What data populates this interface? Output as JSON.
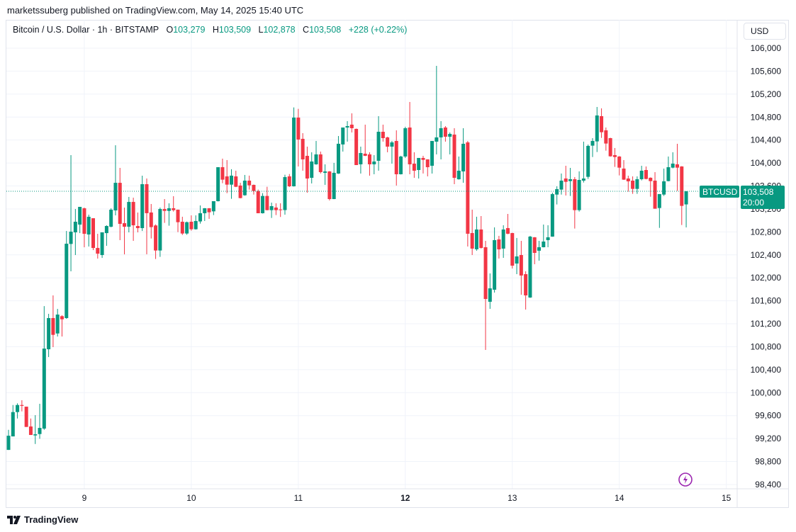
{
  "publish_line": "marketssuberg published on TradingView.com, May 14, 2025 15:40 UTC",
  "legend": {
    "symbol": "Bitcoin / U.S. Dollar · 1h · BITSTAMP",
    "o_label": "O",
    "o": "103,279",
    "h_label": "H",
    "h": "103,509",
    "l_label": "L",
    "l": "102,878",
    "c_label": "C",
    "c": "103,508",
    "change": "+228 (+0.22%)"
  },
  "currency_button": "USD",
  "last_price": {
    "symbol": "BTCUSD",
    "price": "103,508",
    "countdown": "20:00",
    "value": 103508
  },
  "footer_logo": "TradingView",
  "colors": {
    "up": "#089981",
    "down": "#F23645",
    "grid": "#f0f3fa",
    "accent": "#9c27b0"
  },
  "chart_data": {
    "type": "candlestick",
    "title": "Bitcoin / U.S. Dollar · 1h · BITSTAMP",
    "interval": "1h",
    "first_candle": "May 8 07:00",
    "ylim": [
      98400,
      106000
    ],
    "y_ticks": [
      106000,
      105600,
      105200,
      104800,
      104400,
      104000,
      103600,
      103200,
      102800,
      102400,
      102000,
      101600,
      101200,
      100800,
      100400,
      100000,
      99600,
      99200,
      98800,
      98400
    ],
    "y_tick_labels": [
      "106,000",
      "105,600",
      "105,200",
      "104,800",
      "104,400",
      "104,000",
      "103,600",
      "103,200",
      "102,800",
      "102,400",
      "102,000",
      "101,600",
      "101,200",
      "100,800",
      "100,400",
      "100,000",
      "99,600",
      "99,200",
      "98,800",
      "98,400"
    ],
    "x_ticks": [
      {
        "label": "9",
        "index": 17,
        "bold": false
      },
      {
        "label": "10",
        "index": 41,
        "bold": false
      },
      {
        "label": "11",
        "index": 65,
        "bold": false
      },
      {
        "label": "12",
        "index": 89,
        "bold": true
      },
      {
        "label": "13",
        "index": 113,
        "bold": false
      },
      {
        "label": "14",
        "index": 137,
        "bold": false
      },
      {
        "label": "15",
        "index": 161,
        "bold": false
      }
    ],
    "ohlc": [
      [
        99003,
        99353,
        99003,
        99250
      ],
      [
        99238,
        99785,
        99238,
        99662
      ],
      [
        99662,
        99814,
        99550,
        99785
      ],
      [
        99785,
        99868,
        99674,
        99770
      ],
      [
        99756,
        99756,
        99403,
        99403
      ],
      [
        99411,
        99550,
        99263,
        99263
      ],
      [
        99255,
        99608,
        99106,
        99275
      ],
      [
        99279,
        99806,
        99197,
        99386
      ],
      [
        99374,
        101508,
        99353,
        100768
      ],
      [
        100756,
        101373,
        100620,
        101299
      ],
      [
        101299,
        101694,
        100793,
        101007
      ],
      [
        101031,
        101459,
        100978,
        101360
      ],
      [
        101332,
        101348,
        100978,
        101278
      ],
      [
        101299,
        102816,
        101286,
        102594
      ],
      [
        102590,
        104137,
        102113,
        102804
      ],
      [
        102792,
        103199,
        102397,
        102977
      ],
      [
        102927,
        103236,
        102779,
        103236
      ],
      [
        103211,
        103223,
        102532,
        102767
      ],
      [
        102755,
        103100,
        102545,
        103063
      ],
      [
        103038,
        103038,
        102483,
        102520
      ],
      [
        102520,
        102767,
        102335,
        102421
      ],
      [
        102397,
        102792,
        102347,
        102792
      ],
      [
        102779,
        102915,
        102557,
        102903
      ],
      [
        102890,
        103211,
        102880,
        103187
      ],
      [
        103174,
        104309,
        103088,
        103655
      ],
      [
        103655,
        103915,
        102656,
        102940
      ],
      [
        102952,
        103223,
        102409,
        102890
      ],
      [
        102890,
        103409,
        102792,
        103322
      ],
      [
        103322,
        103396,
        102644,
        102915
      ],
      [
        102903,
        103137,
        102792,
        102866
      ],
      [
        102866,
        103779,
        102816,
        103631
      ],
      [
        103631,
        103730,
        102410,
        103126
      ],
      [
        103138,
        103286,
        102685,
        102883
      ],
      [
        102912,
        102930,
        102328,
        102476
      ],
      [
        102476,
        103224,
        102365,
        103199
      ],
      [
        103199,
        103372,
        102957,
        103166
      ],
      [
        103166,
        103298,
        102908,
        103212
      ],
      [
        103212,
        103422,
        103154,
        103179
      ],
      [
        103187,
        103190,
        102796,
        102969
      ],
      [
        102977,
        103064,
        102747,
        102772
      ],
      [
        102772,
        102980,
        102750,
        102969
      ],
      [
        102977,
        103088,
        102821,
        102846
      ],
      [
        102846,
        103088,
        102840,
        102990
      ],
      [
        102982,
        103261,
        102944,
        103125
      ],
      [
        103125,
        103215,
        102990,
        103212
      ],
      [
        103212,
        103215,
        103027,
        103142
      ],
      [
        103158,
        103335,
        103093,
        103335
      ],
      [
        103335,
        103927,
        103330,
        103927
      ],
      [
        103927,
        104076,
        103648,
        103710
      ],
      [
        103767,
        104051,
        103475,
        103623
      ],
      [
        103623,
        103891,
        103376,
        103780
      ],
      [
        103767,
        103866,
        103580,
        103586
      ],
      [
        103607,
        103656,
        103385,
        103389
      ],
      [
        103438,
        103792,
        103430,
        103693
      ],
      [
        103693,
        103780,
        103537,
        103611
      ],
      [
        103619,
        103625,
        103450,
        103512
      ],
      [
        103512,
        103537,
        103125,
        103125
      ],
      [
        103125,
        103475,
        103120,
        103426
      ],
      [
        103426,
        103586,
        103175,
        103179
      ],
      [
        103179,
        103310,
        103043,
        103249
      ],
      [
        103224,
        103298,
        103093,
        103179
      ],
      [
        103191,
        103298,
        103060,
        103183
      ],
      [
        103180,
        103796,
        103100,
        103755
      ],
      [
        103767,
        103808,
        103582,
        103594
      ],
      [
        103594,
        104968,
        103590,
        104791
      ],
      [
        104791,
        104943,
        103940,
        104409
      ],
      [
        104421,
        104520,
        103866,
        104063
      ],
      [
        104125,
        104285,
        103483,
        103730
      ],
      [
        103742,
        104187,
        103644,
        104026
      ],
      [
        103977,
        104384,
        103970,
        104150
      ],
      [
        104150,
        104199,
        103817,
        103841
      ],
      [
        103829,
        103977,
        103619,
        103853
      ],
      [
        103853,
        103860,
        103348,
        103372
      ],
      [
        103372,
        104002,
        103370,
        103829
      ],
      [
        103816,
        104470,
        103810,
        104335
      ],
      [
        104323,
        104618,
        104199,
        104618
      ],
      [
        104618,
        104729,
        104372,
        104643
      ],
      [
        104668,
        104865,
        104532,
        104606
      ],
      [
        104594,
        104600,
        103964,
        103964
      ],
      [
        103977,
        104285,
        103816,
        104174
      ],
      [
        104162,
        104668,
        104120,
        104125
      ],
      [
        104150,
        104187,
        103779,
        103977
      ],
      [
        103977,
        104137,
        103804,
        104026
      ],
      [
        104038,
        104816,
        103866,
        104544
      ],
      [
        104544,
        104668,
        104372,
        104433
      ],
      [
        104446,
        104458,
        104187,
        104285
      ],
      [
        104285,
        104384,
        103989,
        104359
      ],
      [
        104384,
        104569,
        103607,
        103804
      ],
      [
        103804,
        104125,
        103800,
        104113
      ],
      [
        104113,
        104631,
        104088,
        104606
      ],
      [
        104618,
        105063,
        103804,
        103977
      ],
      [
        103989,
        104187,
        103742,
        103866
      ],
      [
        103878,
        104088,
        103730,
        104088
      ],
      [
        104088,
        104125,
        103817,
        104055
      ],
      [
        104063,
        104065,
        103767,
        103927
      ],
      [
        103952,
        104384,
        103816,
        104384
      ],
      [
        104372,
        105692,
        104150,
        104446
      ],
      [
        104446,
        104729,
        104063,
        104606
      ],
      [
        104618,
        104643,
        104372,
        104458
      ],
      [
        104458,
        104532,
        104150,
        104507
      ],
      [
        104495,
        104606,
        103631,
        103742
      ],
      [
        103717,
        104113,
        103710,
        103866
      ],
      [
        103853,
        104606,
        103656,
        104335
      ],
      [
        104359,
        104384,
        102546,
        102768
      ],
      [
        102780,
        103187,
        102397,
        102509
      ],
      [
        102497,
        103064,
        102472,
        102842
      ],
      [
        102842,
        103076,
        102510,
        102521
      ],
      [
        102533,
        102644,
        100744,
        101632
      ],
      [
        101583,
        102077,
        101460,
        101817
      ],
      [
        101793,
        102879,
        101743,
        102657
      ],
      [
        102669,
        102731,
        102336,
        102496
      ],
      [
        102509,
        102916,
        102348,
        102842
      ],
      [
        102866,
        103113,
        102760,
        102768
      ],
      [
        102780,
        102785,
        102163,
        102212
      ],
      [
        102249,
        102694,
        102064,
        102373
      ],
      [
        102397,
        102644,
        101706,
        102040
      ],
      [
        102064,
        102114,
        101447,
        101694
      ],
      [
        101657,
        102731,
        101650,
        102718
      ],
      [
        102706,
        102710,
        102237,
        102434
      ],
      [
        102472,
        102644,
        102299,
        102533
      ],
      [
        102533,
        102928,
        102530,
        102632
      ],
      [
        102657,
        102916,
        102533,
        102706
      ],
      [
        102718,
        103483,
        102715,
        103458
      ],
      [
        103450,
        103594,
        103278,
        103545
      ],
      [
        103537,
        103817,
        103450,
        103693
      ],
      [
        103730,
        103952,
        103434,
        103672
      ],
      [
        103685,
        103915,
        103426,
        103718
      ],
      [
        103718,
        103755,
        102858,
        103179
      ],
      [
        103179,
        103854,
        103154,
        103705
      ],
      [
        103693,
        104372,
        103660,
        103730
      ],
      [
        103759,
        104322,
        103722,
        104298
      ],
      [
        104302,
        104433,
        104104,
        104384
      ],
      [
        104376,
        104976,
        104191,
        104828
      ],
      [
        104816,
        104952,
        104437,
        104536
      ],
      [
        104569,
        104618,
        104215,
        104339
      ],
      [
        104433,
        104440,
        104110,
        104117
      ],
      [
        104137,
        104261,
        103932,
        104104
      ],
      [
        104113,
        104120,
        103784,
        103919
      ],
      [
        103903,
        104051,
        103705,
        103710
      ],
      [
        103730,
        103779,
        103500,
        103681
      ],
      [
        103693,
        103767,
        103463,
        103549
      ],
      [
        103549,
        103767,
        103463,
        103718
      ],
      [
        103718,
        103952,
        103697,
        103866
      ],
      [
        103878,
        103940,
        103715,
        103722
      ],
      [
        103743,
        103750,
        103413,
        103685
      ],
      [
        103693,
        103841,
        103204,
        103204
      ],
      [
        103216,
        103459,
        102870,
        103459
      ],
      [
        103450,
        103903,
        103426,
        103681
      ],
      [
        103685,
        104113,
        103680,
        103927
      ],
      [
        103919,
        104187,
        103907,
        103989
      ],
      [
        103977,
        104335,
        103512,
        103919
      ],
      [
        103940,
        103945,
        102920,
        103253
      ],
      [
        103279,
        103509,
        102878,
        103508
      ]
    ]
  }
}
